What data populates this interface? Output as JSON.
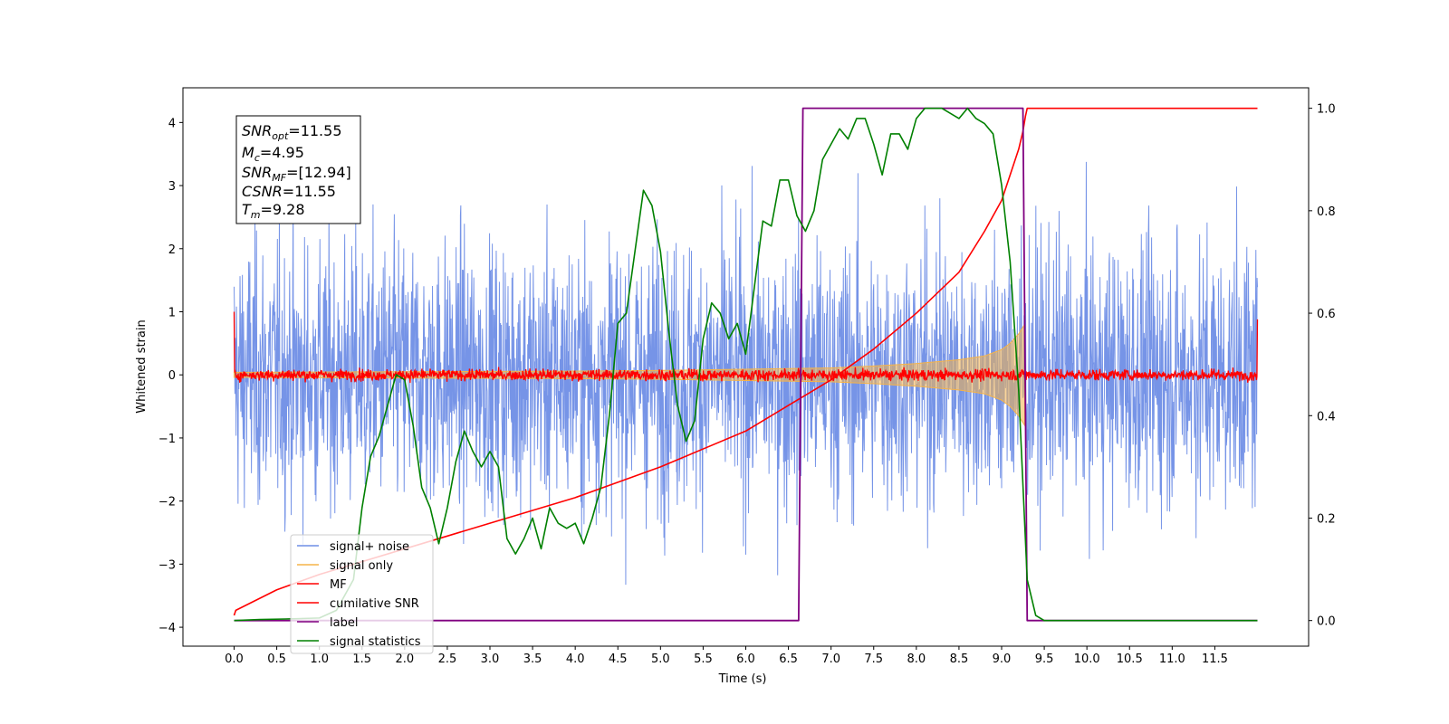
{
  "chart_data": {
    "type": "line",
    "xlabel": "Time (s)",
    "ylabel": "Whitened strain",
    "xlim": [
      -0.6,
      12.6
    ],
    "ylim_left": [
      -4.3,
      4.55
    ],
    "ylim_right": [
      -0.05,
      1.04
    ],
    "grid": false,
    "x_ticks": [
      "0.0",
      "0.5",
      "1.0",
      "1.5",
      "2.0",
      "2.5",
      "3.0",
      "3.5",
      "4.0",
      "4.5",
      "5.0",
      "5.5",
      "6.0",
      "6.5",
      "7.0",
      "7.5",
      "8.0",
      "8.5",
      "9.0",
      "9.5",
      "10.0",
      "10.5",
      "11.0",
      "11.5"
    ],
    "y_ticks_left": [
      "−4",
      "−3",
      "−2",
      "−1",
      "0",
      "1",
      "2",
      "3",
      "4"
    ],
    "y_ticks_right": [
      "0.0",
      "0.2",
      "0.4",
      "0.6",
      "0.8",
      "1.0"
    ],
    "legend_position": "lower-left",
    "colors": {
      "signal_noise": "#6f8ee6",
      "signal_only": "#f5b349",
      "mf": "#ff0000",
      "cumulative_snr": "#ff0000",
      "label": "#800080",
      "signal_statistics": "#008000"
    },
    "series": [
      {
        "name": "signal+ noise",
        "axis": "left",
        "kind": "noise",
        "x_range": [
          0.0,
          12.0
        ],
        "amplitude": 3.0,
        "peak_amplitude": 4.1
      },
      {
        "name": "signal only",
        "axis": "left",
        "kind": "chirp-envelope",
        "x": [
          0.0,
          2.0,
          4.0,
          5.0,
          6.0,
          7.0,
          7.5,
          8.0,
          8.5,
          8.8,
          9.0,
          9.1,
          9.2,
          9.27
        ],
        "y": [
          0.04,
          0.05,
          0.06,
          0.07,
          0.09,
          0.11,
          0.14,
          0.18,
          0.24,
          0.3,
          0.4,
          0.5,
          0.65,
          0.8
        ]
      },
      {
        "name": "MF",
        "axis": "left",
        "kind": "noise",
        "x_range": [
          0.0,
          12.0
        ],
        "amplitude": 0.1,
        "start_value": 1.0,
        "end_value": 0.88
      },
      {
        "name": "cumilative SNR",
        "axis": "right",
        "x": [
          0.0,
          0.02,
          0.5,
          1.0,
          1.5,
          2.0,
          2.5,
          3.0,
          3.5,
          4.0,
          4.5,
          5.0,
          5.5,
          6.0,
          6.5,
          7.0,
          7.5,
          8.0,
          8.5,
          8.8,
          9.0,
          9.1,
          9.2,
          9.25,
          9.28,
          9.3,
          12.0
        ],
        "y": [
          0.01,
          0.02,
          0.06,
          0.09,
          0.115,
          0.14,
          0.165,
          0.19,
          0.215,
          0.24,
          0.27,
          0.3,
          0.335,
          0.37,
          0.42,
          0.47,
          0.53,
          0.6,
          0.68,
          0.76,
          0.82,
          0.87,
          0.92,
          0.955,
          0.985,
          1.0,
          1.0
        ]
      },
      {
        "name": "label",
        "axis": "right",
        "x": [
          0.0,
          6.62,
          6.67,
          9.25,
          9.3,
          12.0
        ],
        "y": [
          0.0,
          0.0,
          1.0,
          1.0,
          0.0,
          0.0
        ]
      },
      {
        "name": "signal statistics",
        "axis": "right",
        "x": [
          0.0,
          0.3,
          0.6,
          1.0,
          1.2,
          1.4,
          1.5,
          1.6,
          1.7,
          1.8,
          1.9,
          2.0,
          2.1,
          2.2,
          2.3,
          2.4,
          2.5,
          2.6,
          2.7,
          2.8,
          2.9,
          3.0,
          3.1,
          3.2,
          3.3,
          3.4,
          3.5,
          3.6,
          3.7,
          3.8,
          3.9,
          4.0,
          4.1,
          4.2,
          4.3,
          4.4,
          4.5,
          4.6,
          4.7,
          4.8,
          4.9,
          5.0,
          5.1,
          5.2,
          5.3,
          5.4,
          5.5,
          5.6,
          5.7,
          5.8,
          5.9,
          6.0,
          6.1,
          6.2,
          6.3,
          6.4,
          6.5,
          6.6,
          6.7,
          6.8,
          6.9,
          7.0,
          7.1,
          7.2,
          7.3,
          7.4,
          7.5,
          7.6,
          7.7,
          7.8,
          7.9,
          8.0,
          8.1,
          8.2,
          8.3,
          8.4,
          8.5,
          8.6,
          8.7,
          8.8,
          8.9,
          9.0,
          9.1,
          9.2,
          9.3,
          9.4,
          9.5,
          10.0,
          11.0,
          12.0
        ],
        "y": [
          0.0,
          0.002,
          0.003,
          0.005,
          0.02,
          0.08,
          0.22,
          0.32,
          0.36,
          0.42,
          0.48,
          0.47,
          0.38,
          0.26,
          0.22,
          0.15,
          0.22,
          0.31,
          0.37,
          0.33,
          0.3,
          0.33,
          0.3,
          0.16,
          0.13,
          0.16,
          0.2,
          0.14,
          0.22,
          0.19,
          0.18,
          0.19,
          0.15,
          0.2,
          0.26,
          0.4,
          0.58,
          0.6,
          0.72,
          0.84,
          0.81,
          0.72,
          0.56,
          0.42,
          0.35,
          0.39,
          0.55,
          0.62,
          0.6,
          0.55,
          0.58,
          0.52,
          0.65,
          0.78,
          0.77,
          0.86,
          0.86,
          0.79,
          0.76,
          0.8,
          0.9,
          0.93,
          0.96,
          0.94,
          0.98,
          0.98,
          0.93,
          0.87,
          0.95,
          0.95,
          0.92,
          0.98,
          1.0,
          1.0,
          1.0,
          0.99,
          0.98,
          1.0,
          0.98,
          0.97,
          0.95,
          0.85,
          0.7,
          0.45,
          0.08,
          0.01,
          0.0,
          0.0,
          0.0,
          0.0
        ]
      }
    ]
  },
  "legend": {
    "items": [
      {
        "label": "signal+ noise",
        "color": "#6f8ee6"
      },
      {
        "label": "signal only",
        "color": "#f5b349"
      },
      {
        "label": "MF",
        "color": "#ff0000"
      },
      {
        "label": "cumilative SNR",
        "color": "#ff0000"
      },
      {
        "label": "label",
        "color": "#800080"
      },
      {
        "label": "signal statistics",
        "color": "#008000"
      }
    ]
  },
  "info_box": {
    "snr_opt": {
      "base": "SNR",
      "sub": "opt",
      "rest": "=11.55"
    },
    "mc": {
      "base": "M",
      "sub": "c",
      "rest": "=4.95"
    },
    "snr_mf": {
      "base": "SNR",
      "sub": "MF",
      "rest": "=[12.94]"
    },
    "csnr": {
      "base": "CSNR",
      "rest": "=11.55"
    },
    "tm": {
      "base": "T",
      "sub": "m",
      "rest": "=9.28"
    }
  }
}
